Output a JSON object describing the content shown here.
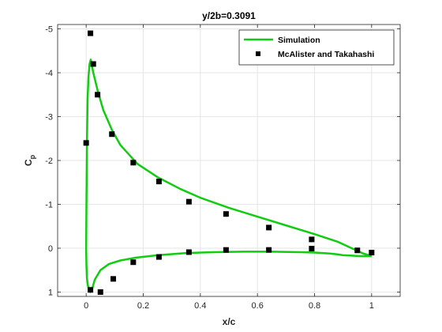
{
  "chart_data": {
    "type": "line",
    "title": "y/2b=0.3091",
    "xlabel": "x/c",
    "ylabel": "C",
    "ylabel_subscript": "p",
    "xlim": [
      -0.1,
      1.1
    ],
    "ylim": [
      -5.1,
      1.1
    ],
    "y_reversed": true,
    "grid": true,
    "legend_position": "top-right",
    "x_ticks": [
      0,
      0.2,
      0.4,
      0.6,
      0.8,
      1
    ],
    "x_tick_labels": [
      "0",
      "0.2",
      "0.4",
      "0.6",
      "0.8",
      "1"
    ],
    "y_ticks": [
      -5,
      -4,
      -3,
      -2,
      -1,
      0,
      1
    ],
    "y_tick_labels": [
      "-5",
      "-4",
      "-3",
      "-2",
      "-1",
      "0",
      "1"
    ],
    "colors": {
      "simulation": "#11cc11",
      "experiment": "#000000",
      "grid": "#e6e6e6",
      "axis": "#262626"
    },
    "series": [
      {
        "name": "Simulation",
        "kind": "line",
        "x": [
          1.0,
          0.97,
          0.93,
          0.88,
          0.8,
          0.7,
          0.6,
          0.5,
          0.4,
          0.33,
          0.25,
          0.18,
          0.12,
          0.09,
          0.06,
          0.04,
          0.025,
          0.016,
          0.012,
          0.008,
          0.005,
          0.003,
          0.001,
          0.0,
          0.001,
          0.003,
          0.006,
          0.01,
          0.015,
          0.02,
          0.03,
          0.05,
          0.08,
          0.12,
          0.17,
          0.25,
          0.35,
          0.45,
          0.55,
          0.65,
          0.75,
          0.8,
          0.85,
          0.88,
          0.9,
          0.93,
          0.96,
          1.0
        ],
        "y": [
          0.18,
          0.12,
          0.0,
          -0.15,
          -0.32,
          -0.52,
          -0.72,
          -0.92,
          -1.15,
          -1.35,
          -1.62,
          -1.92,
          -2.35,
          -2.7,
          -3.15,
          -3.6,
          -4.0,
          -4.3,
          -4.2,
          -3.9,
          -3.4,
          -2.5,
          -1.0,
          0.0,
          0.4,
          0.7,
          0.85,
          0.95,
          1.0,
          0.95,
          0.72,
          0.5,
          0.36,
          0.28,
          0.22,
          0.16,
          0.11,
          0.09,
          0.08,
          0.08,
          0.09,
          0.1,
          0.12,
          0.14,
          0.16,
          0.17,
          0.18,
          0.18
        ]
      },
      {
        "name": "McAlister and Takahashi",
        "kind": "scatter",
        "x": [
          0.015,
          0.025,
          0.04,
          0.09,
          0.165,
          0.255,
          0.36,
          0.49,
          0.64,
          0.79,
          0.95,
          0.0,
          0.015,
          0.05,
          0.095,
          0.165,
          0.255,
          0.36,
          0.49,
          0.64,
          0.79,
          1.0
        ],
        "y": [
          -4.9,
          -4.2,
          -3.5,
          -2.6,
          -1.95,
          -1.52,
          -1.06,
          -0.78,
          -0.47,
          -0.2,
          0.05,
          -2.4,
          0.95,
          1.0,
          0.7,
          0.32,
          0.2,
          0.09,
          0.04,
          0.04,
          0.01,
          0.1
        ]
      }
    ]
  }
}
